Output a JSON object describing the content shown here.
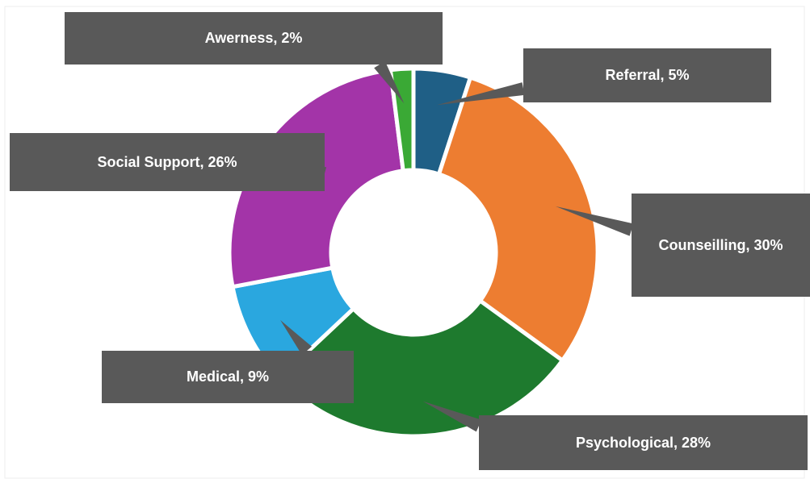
{
  "chart_data": {
    "type": "donut",
    "categories": [
      "Referral",
      "Counseilling",
      "Psychological",
      "Medical",
      "Social Support",
      "Awerness"
    ],
    "values": [
      5,
      30,
      28,
      9,
      26,
      2
    ],
    "value_labels": [
      "Referral, 5%",
      "Counseilling, 30%",
      "Psychological, 28%",
      "Medical, 9%",
      "Social Support, 26%",
      "Awerness, 2%"
    ],
    "colors": [
      "#1f5f86",
      "#ed7d31",
      "#1e7a2e",
      "#2aa7df",
      "#a334a8",
      "#3aa935"
    ]
  }
}
